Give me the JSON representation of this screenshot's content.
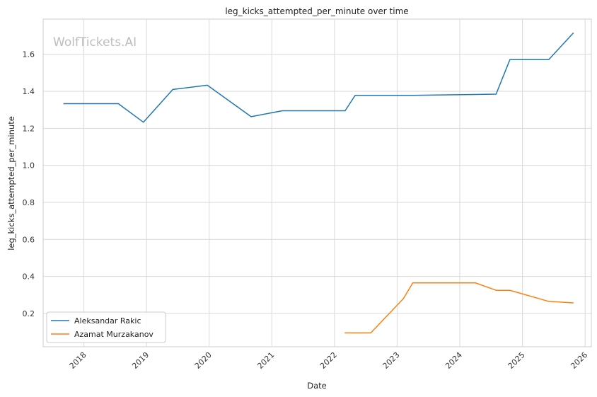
{
  "chart_data": {
    "type": "line",
    "title": "leg_kicks_attempted_per_minute over time",
    "xlabel": "Date",
    "ylabel": "leg_kicks_attempted_per_minute",
    "watermark": "WolfTickets.AI",
    "xlim": [
      2017.35,
      2026.1
    ],
    "ylim": [
      0.02,
      1.79
    ],
    "x_ticks": [
      2018,
      2019,
      2020,
      2021,
      2022,
      2023,
      2024,
      2025,
      2026
    ],
    "y_ticks": [
      0.2,
      0.4,
      0.6,
      0.8,
      1.0,
      1.2,
      1.4,
      1.6
    ],
    "grid": true,
    "legend_position": "lower-left",
    "series": [
      {
        "name": "Aleksandar Rakic",
        "color": "#1f77b4",
        "x": [
          2017.68,
          2018.55,
          2018.95,
          2019.42,
          2019.97,
          2020.67,
          2021.17,
          2022.17,
          2022.33,
          2023.25,
          2024.25,
          2024.58,
          2024.8,
          2025.42,
          2025.81
        ],
        "y": [
          1.333,
          1.333,
          1.233,
          1.41,
          1.433,
          1.263,
          1.295,
          1.295,
          1.378,
          1.378,
          1.383,
          1.385,
          1.571,
          1.571,
          1.714
        ]
      },
      {
        "name": "Azamat Murzakanov",
        "color": "#ff7f0e",
        "x": [
          2022.17,
          2022.58,
          2023.1,
          2023.25,
          2024.25,
          2024.58,
          2024.8,
          2025.42,
          2025.81
        ],
        "y": [
          0.095,
          0.095,
          0.28,
          0.365,
          0.365,
          0.325,
          0.325,
          0.265,
          0.257
        ]
      }
    ]
  }
}
